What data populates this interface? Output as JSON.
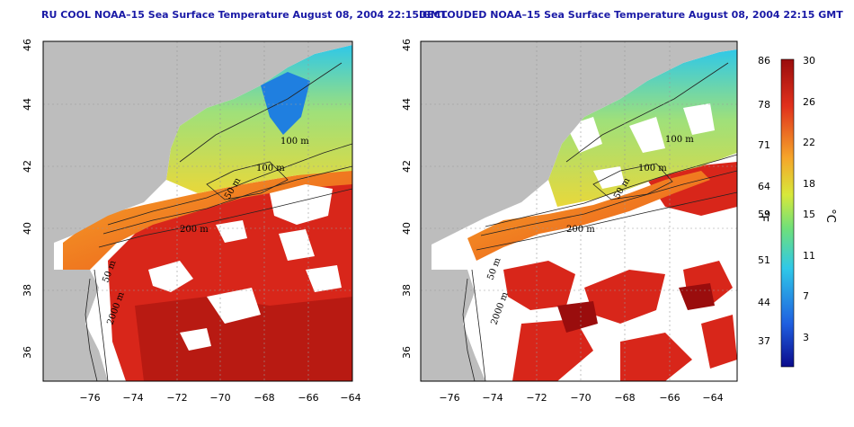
{
  "panels": [
    {
      "title": "RU COOL NOAA–15 Sea Surface Temperature August 08, 2004 22:15 GMT",
      "contour_labels": [
        "100 m",
        "100 m",
        "50 m",
        "200 m",
        "50 m",
        "2000 m"
      ]
    },
    {
      "title": "DECLOUDED NOAA–15 Sea Surface Temperature August 08, 2004 22:15 GMT",
      "contour_labels": [
        "100 m",
        "100 m",
        "50 m",
        "200 m",
        "50 m",
        "2000 m"
      ]
    }
  ],
  "axes": {
    "x_ticks": [
      "−76",
      "−74",
      "−72",
      "−70",
      "−68",
      "−66",
      "−64"
    ],
    "y_ticks": [
      "36",
      "38",
      "40",
      "42",
      "44",
      "46"
    ]
  },
  "colorbar": {
    "fahrenheit_ticks": [
      "86",
      "78",
      "71",
      "64",
      "59",
      "51",
      "44",
      "37"
    ],
    "celsius_ticks": [
      "30",
      "26",
      "22",
      "18",
      "15",
      "11",
      "7",
      "3"
    ],
    "fahrenheit_unit": "°F",
    "celsius_unit": "°C"
  },
  "colors": {
    "land": "#bdbdbd",
    "cloud": "#ffffff",
    "title": "#1a1aa6",
    "colorbar_stops": [
      "#0b0b8c",
      "#1f5fe0",
      "#2fc8e8",
      "#6fe07a",
      "#d8e83a",
      "#f5a52a",
      "#e0301c",
      "#9a0d0d"
    ]
  }
}
